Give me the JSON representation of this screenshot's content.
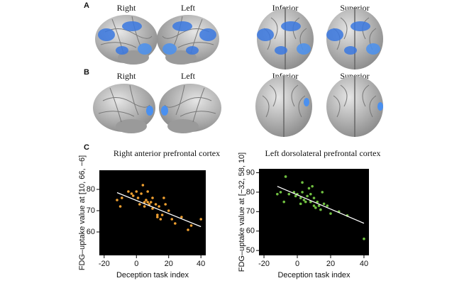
{
  "panels": {
    "a": {
      "label": "A",
      "views": [
        "Right",
        "Left",
        "Inferior",
        "Superior"
      ]
    },
    "b": {
      "label": "B",
      "views": [
        "Right",
        "Left",
        "Inferior",
        "Superior"
      ]
    },
    "c": {
      "label": "C"
    }
  },
  "chart_data": [
    {
      "type": "scatter",
      "title": "Right anterior prefrontal cortex",
      "x_label": "Deception task index",
      "y_label": "FDG–uptake value at [10, 66, −6]",
      "color": "#f0a030",
      "line_color": "#ffffff",
      "xlim": [
        -23,
        43
      ],
      "xticks": [
        -20,
        0,
        20,
        40
      ],
      "ylim": [
        49,
        89
      ],
      "yticks": [
        60,
        70,
        80
      ],
      "x": [
        -12,
        -10,
        -9,
        -5,
        -3,
        -2,
        0,
        1,
        2,
        3,
        4,
        5,
        5,
        6,
        7,
        7,
        8,
        9,
        10,
        10,
        12,
        13,
        13,
        14,
        15,
        16,
        17,
        18,
        20,
        22,
        24,
        28,
        32,
        34,
        40
      ],
      "values": [
        75,
        72,
        76,
        79,
        78,
        77,
        79,
        76,
        73,
        78,
        82,
        74,
        72,
        75,
        74,
        79,
        73,
        74,
        71,
        76,
        73,
        68,
        67,
        72,
        66,
        68,
        76,
        73,
        70,
        66,
        64,
        67,
        61,
        63,
        66
      ],
      "fit": {
        "x": [
          -12,
          40
        ],
        "values": [
          78.5,
          62.5
        ]
      }
    },
    {
      "type": "scatter",
      "title": "Left dorsolateral prefrontal cortex",
      "x_label": "Deception task index",
      "y_label": "FDG–uptake value at [−32, 58, 10]",
      "color": "#70c040",
      "line_color": "#ffffff",
      "xlim": [
        -23,
        43
      ],
      "xticks": [
        -20,
        0,
        20,
        40
      ],
      "ylim": [
        47.5,
        92
      ],
      "yticks": [
        50,
        60,
        70,
        80,
        90
      ],
      "x": [
        -12,
        -10,
        -8,
        -7,
        -5,
        -2,
        -1,
        0,
        2,
        2,
        3,
        3,
        4,
        5,
        6,
        7,
        8,
        8,
        9,
        10,
        10,
        11,
        12,
        13,
        14,
        15,
        16,
        18,
        20,
        25,
        30,
        40
      ],
      "values": [
        79,
        80,
        75,
        88,
        79,
        80,
        78,
        79,
        74,
        77,
        80,
        85,
        76,
        75,
        78,
        82,
        75,
        79,
        83,
        77,
        73,
        72,
        75,
        73,
        71,
        80,
        74,
        73,
        69,
        70,
        68,
        56
      ],
      "fit": {
        "x": [
          -12,
          40
        ],
        "values": [
          83,
          64
        ]
      }
    }
  ]
}
